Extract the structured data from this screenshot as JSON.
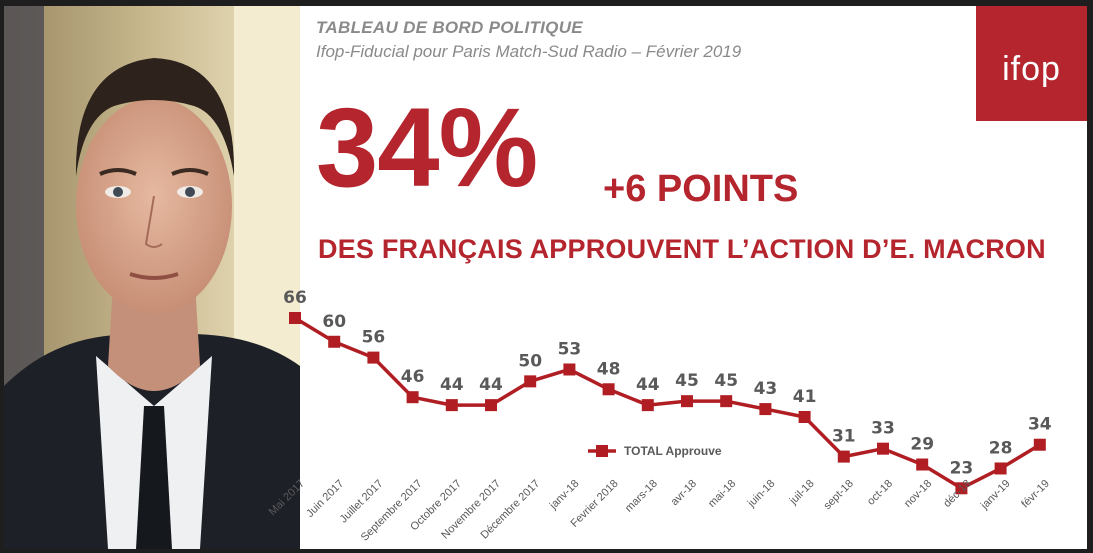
{
  "header": {
    "kicker": "TABLEAU DE BORD POLITIQUE",
    "subtitle": "Ifop-Fiducial pour Paris Match-Sud Radio – Février 2019"
  },
  "logo": {
    "text": "ifop",
    "color": "#b5252e"
  },
  "headline": {
    "percent": "34%",
    "change": "+6 POINTS",
    "statement": "DES FRANÇAIS APPROUVENT L’ACTION D’E. MACRON"
  },
  "chart_data": {
    "type": "line",
    "categories": [
      "Mai 2017",
      "Juin 2017",
      "Juillet 2017",
      "Septembre 2017",
      "Octobre 2017",
      "Novembre 2017",
      "Décembre 2017",
      "janv-18",
      "Fevrier 2018",
      "mars-18",
      "avr-18",
      "mai-18",
      "juin-18",
      "juil-18",
      "sept-18",
      "oct-18",
      "nov-18",
      "déc-18",
      "janv-19",
      "févr-19"
    ],
    "series": [
      {
        "name": "TOTAL Approuve",
        "values": [
          66,
          60,
          56,
          46,
          44,
          44,
          50,
          53,
          48,
          44,
          45,
          45,
          43,
          41,
          31,
          33,
          29,
          23,
          28,
          34
        ],
        "color": "#b01e23"
      }
    ],
    "legend": "bottom-center",
    "grid": false
  }
}
